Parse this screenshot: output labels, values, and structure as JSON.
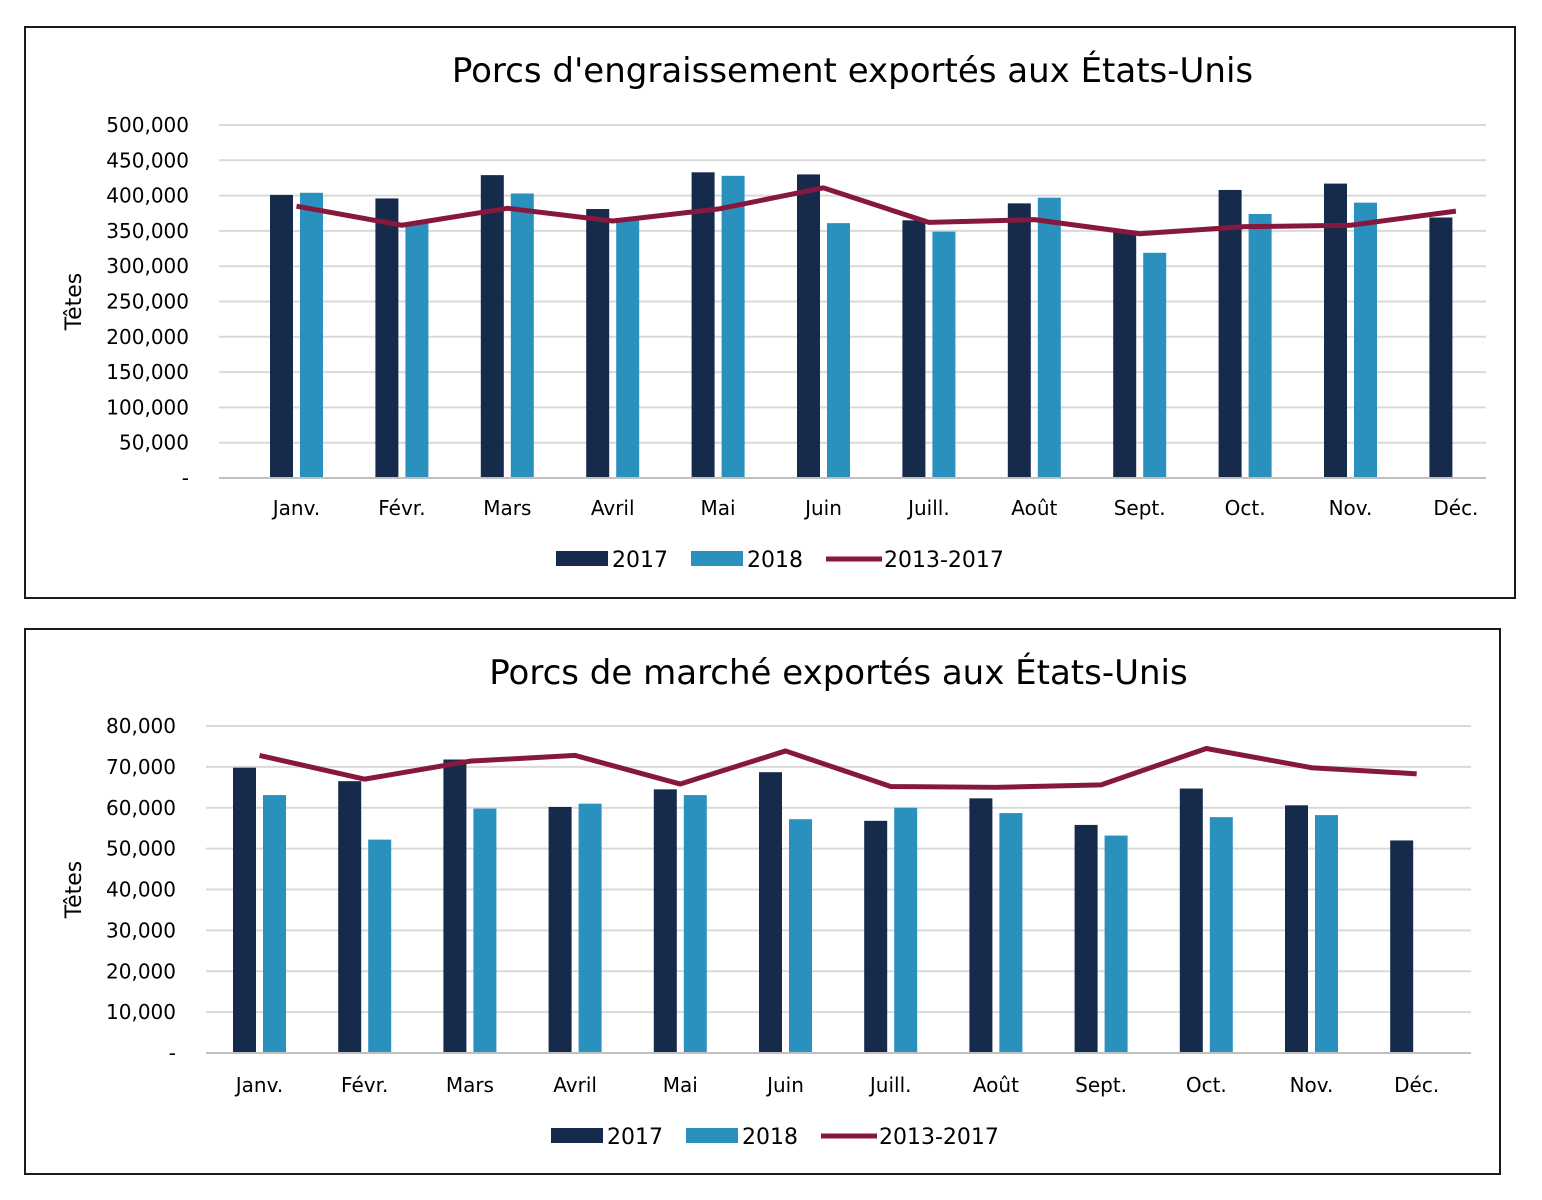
{
  "colors": {
    "s2017": "#162a4c",
    "s2018": "#2a91bf",
    "avg": "#86183f",
    "grid": "#d9d9d9",
    "axis": "#bfbfbf"
  },
  "legend": {
    "s2017": "2017",
    "s2018": "2018",
    "avg": "2013-2017"
  },
  "chart_data": [
    {
      "type": "bar",
      "title": "Porcs d'engraissement exportés aux États-Unis",
      "ylabel": "Têtes",
      "xlabel": "",
      "categories": [
        "Janv.",
        "Févr.",
        "Mars",
        "Avril",
        "Mai",
        "Juin",
        "Juill.",
        "Août",
        "Sept.",
        "Oct.",
        "Nov.",
        "Déc."
      ],
      "ylim": [
        0,
        500000
      ],
      "yticks": [
        "-",
        "50,000",
        "100,000",
        "150,000",
        "200,000",
        "250,000",
        "300,000",
        "350,000",
        "400,000",
        "450,000",
        "500,000"
      ],
      "grid": true,
      "legend_position": "bottom",
      "series": [
        {
          "name": "2017",
          "type": "bar",
          "values": [
            401000,
            396000,
            429000,
            381000,
            433000,
            430000,
            365000,
            389000,
            348000,
            408000,
            417000,
            369000
          ]
        },
        {
          "name": "2018",
          "type": "bar",
          "values": [
            404000,
            361000,
            403000,
            365000,
            428000,
            361000,
            349000,
            397000,
            319000,
            374000,
            390000,
            null
          ]
        },
        {
          "name": "2013-2017",
          "type": "line",
          "values": [
            385000,
            358000,
            382000,
            364000,
            381000,
            411000,
            362000,
            366000,
            346000,
            356000,
            358000,
            378000
          ]
        }
      ]
    },
    {
      "type": "bar",
      "title": "Porcs de marché exportés aux États-Unis",
      "ylabel": "Têtes",
      "xlabel": "",
      "categories": [
        "Janv.",
        "Févr.",
        "Mars",
        "Avril",
        "Mai",
        "Juin",
        "Juill.",
        "Août",
        "Sept.",
        "Oct.",
        "Nov.",
        "Déc."
      ],
      "ylim": [
        0,
        80000
      ],
      "yticks": [
        "-",
        "10,000",
        "20,000",
        "30,000",
        "40,000",
        "50,000",
        "60,000",
        "70,000",
        "80,000"
      ],
      "grid": true,
      "legend_position": "bottom",
      "series": [
        {
          "name": "2017",
          "type": "bar",
          "values": [
            69800,
            66500,
            71800,
            60200,
            64500,
            68700,
            56800,
            62300,
            55800,
            64700,
            60600,
            52000
          ]
        },
        {
          "name": "2018",
          "type": "bar",
          "values": [
            63100,
            52200,
            59800,
            61000,
            63100,
            57200,
            60000,
            58700,
            53200,
            57700,
            58200,
            null
          ]
        },
        {
          "name": "2013-2017",
          "type": "line",
          "values": [
            72800,
            67000,
            71400,
            72800,
            65800,
            73900,
            65200,
            65000,
            65600,
            74500,
            69800,
            68300
          ]
        }
      ]
    }
  ]
}
